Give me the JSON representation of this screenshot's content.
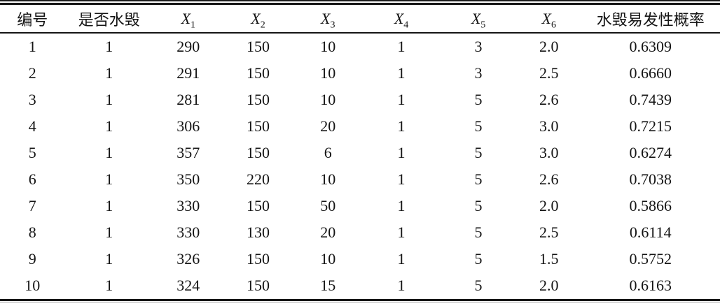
{
  "table": {
    "columns": [
      {
        "label": "编号"
      },
      {
        "label": "是否水毁"
      },
      {
        "var": "X",
        "sub": "1"
      },
      {
        "var": "X",
        "sub": "2"
      },
      {
        "var": "X",
        "sub": "3"
      },
      {
        "var": "X",
        "sub": "4"
      },
      {
        "var": "X",
        "sub": "5"
      },
      {
        "var": "X",
        "sub": "6"
      },
      {
        "label": "水毁易发性概率"
      }
    ],
    "rows": [
      [
        "1",
        "1",
        "290",
        "150",
        "10",
        "1",
        "3",
        "2.0",
        "0.6309"
      ],
      [
        "2",
        "1",
        "291",
        "150",
        "10",
        "1",
        "3",
        "2.5",
        "0.6660"
      ],
      [
        "3",
        "1",
        "281",
        "150",
        "10",
        "1",
        "5",
        "2.6",
        "0.7439"
      ],
      [
        "4",
        "1",
        "306",
        "150",
        "20",
        "1",
        "5",
        "3.0",
        "0.7215"
      ],
      [
        "5",
        "1",
        "357",
        "150",
        "6",
        "1",
        "5",
        "3.0",
        "0.6274"
      ],
      [
        "6",
        "1",
        "350",
        "220",
        "10",
        "1",
        "5",
        "2.6",
        "0.7038"
      ],
      [
        "7",
        "1",
        "330",
        "150",
        "50",
        "1",
        "5",
        "2.0",
        "0.5866"
      ],
      [
        "8",
        "1",
        "330",
        "130",
        "20",
        "1",
        "5",
        "2.5",
        "0.6114"
      ],
      [
        "9",
        "1",
        "326",
        "150",
        "10",
        "1",
        "5",
        "1.5",
        "0.5752"
      ],
      [
        "10",
        "1",
        "324",
        "150",
        "15",
        "1",
        "5",
        "2.0",
        "0.6163"
      ]
    ]
  },
  "colors": {
    "text": "#141414",
    "rule": "#151515",
    "background": "#ffffff"
  }
}
